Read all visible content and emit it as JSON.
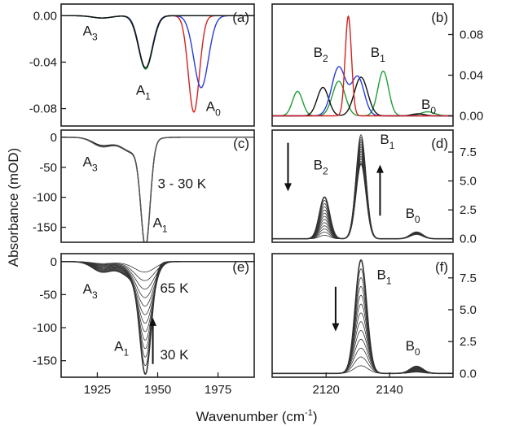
{
  "figure": {
    "ylabel": "Absorbance (mOD)",
    "xlabel": "Wavenumber (cm",
    "xlabel_sup": "-1",
    "xlabel_end": ")"
  },
  "chart_data": [
    {
      "id": "a",
      "panel_label": "(a)",
      "type": "line",
      "xlim": [
        1910,
        1990
      ],
      "ylim": [
        -0.095,
        0.01
      ],
      "yticks": [
        0.0,
        -0.04,
        -0.08
      ],
      "ytick_labels": [
        "0.00",
        "-0.04",
        "-0.08"
      ],
      "xticks": [],
      "xtick_labels": [],
      "y_axis_side": "left",
      "series": [
        {
          "color": "#d42020",
          "peaks": [
            {
              "center": 1945,
              "amp": -0.045,
              "width": 2.8
            },
            {
              "center": 1965,
              "amp": -0.083,
              "width": 2.3
            },
            {
              "center": 1927,
              "amp": -0.002,
              "width": 4
            }
          ]
        },
        {
          "color": "#2a3cd6",
          "peaks": [
            {
              "center": 1945,
              "amp": -0.045,
              "width": 2.8
            },
            {
              "center": 1968,
              "amp": -0.062,
              "width": 3.0
            },
            {
              "center": 1927,
              "amp": -0.002,
              "width": 4
            }
          ]
        },
        {
          "color": "#1e9e35",
          "peaks": [
            {
              "center": 1945,
              "amp": -0.046,
              "width": 2.9
            },
            {
              "center": 1927,
              "amp": -0.002,
              "width": 4
            }
          ]
        },
        {
          "color": "#111111",
          "peaks": [
            {
              "center": 1945,
              "amp": -0.045,
              "width": 2.9
            },
            {
              "center": 1927,
              "amp": -0.002,
              "width": 4
            }
          ]
        }
      ],
      "annotations": [
        {
          "main": "A",
          "sub": "3",
          "x": 1919,
          "y": -0.017
        },
        {
          "main": "A",
          "sub": "1",
          "x": 1941,
          "y": -0.068
        },
        {
          "main": "A",
          "sub": "0",
          "x": 1970,
          "y": -0.082
        }
      ]
    },
    {
      "id": "b",
      "panel_label": "(b)",
      "type": "line",
      "xlim": [
        2103,
        2160
      ],
      "ylim": [
        -0.01,
        0.11
      ],
      "yticks": [
        0.0,
        0.04,
        0.08
      ],
      "ytick_labels": [
        "0.00",
        "0.04",
        "0.08"
      ],
      "xticks": [],
      "xtick_labels": [],
      "y_axis_side": "right",
      "series": [
        {
          "color": "#1e9e35",
          "peaks": [
            {
              "center": 2111,
              "amp": 0.024,
              "width": 1.6
            },
            {
              "center": 2124,
              "amp": 0.034,
              "width": 2.0
            },
            {
              "center": 2138,
              "amp": 0.044,
              "width": 1.7
            },
            {
              "center": 2152,
              "amp": 0.004,
              "width": 2.2
            }
          ]
        },
        {
          "color": "#111111",
          "peaks": [
            {
              "center": 2119,
              "amp": 0.028,
              "width": 1.8
            },
            {
              "center": 2131,
              "amp": 0.038,
              "width": 2.1
            },
            {
              "center": 2149,
              "amp": 0.002,
              "width": 2
            }
          ]
        },
        {
          "color": "#2a3cd6",
          "peaks": [
            {
              "center": 2124,
              "amp": 0.048,
              "width": 2.2
            },
            {
              "center": 2130,
              "amp": 0.038,
              "width": 2.0
            }
          ]
        },
        {
          "color": "#d42020",
          "peaks": [
            {
              "center": 2127,
              "amp": 0.098,
              "width": 1.0
            }
          ]
        }
      ],
      "annotations": [
        {
          "main": "B",
          "sub": "2",
          "x": 2116,
          "y": 0.058
        },
        {
          "main": "B",
          "sub": "1",
          "x": 2134,
          "y": 0.058
        },
        {
          "main": "B",
          "sub": "0",
          "x": 2150,
          "y": 0.007
        }
      ]
    },
    {
      "id": "c",
      "panel_label": "(c)",
      "type": "line",
      "xlim": [
        1910,
        1990
      ],
      "ylim": [
        -175,
        12
      ],
      "yticks": [
        0,
        -50,
        -100,
        -150
      ],
      "ytick_labels": [
        "0",
        "-50",
        "-100",
        "-150"
      ],
      "xticks": [],
      "xtick_labels": [],
      "y_axis_side": "left",
      "series": [
        {
          "color": "#111111",
          "peaks": [
            {
              "center": 1945,
              "amp": -168,
              "width": 1.9
            },
            {
              "center": 1940,
              "amp": -25,
              "width": 5
            },
            {
              "center": 1927,
              "amp": -13,
              "width": 4
            }
          ]
        },
        {
          "color": "#555555",
          "peaks": [
            {
              "center": 1945,
              "amp": -166,
              "width": 1.9
            },
            {
              "center": 1940,
              "amp": -26,
              "width": 5
            },
            {
              "center": 1927,
              "amp": -15,
              "width": 4
            }
          ]
        }
      ],
      "annotations": [
        {
          "main": "A",
          "sub": "3",
          "x": 1919,
          "y": -48
        },
        {
          "main": "A",
          "sub": "1",
          "x": 1948,
          "y": -150
        }
      ],
      "text_notes": [
        {
          "text": "3 - 30 K",
          "x": 1950,
          "y": -85
        }
      ]
    },
    {
      "id": "d",
      "panel_label": "(d)",
      "type": "line",
      "xlim": [
        2103,
        2160
      ],
      "ylim": [
        -0.3,
        9.4
      ],
      "yticks": [
        0.0,
        2.5,
        5.0,
        7.5
      ],
      "ytick_labels": [
        "0.0",
        "2.5",
        "5.0",
        "7.5"
      ],
      "xticks": [],
      "xtick_labels": [],
      "y_axis_side": "right",
      "series_family": {
        "count": 13,
        "color": "#333333",
        "first": [
          {
            "center": 2119.5,
            "amp": 3.6,
            "width": 1.6
          },
          {
            "center": 2131,
            "amp": 6.5,
            "width": 1.6
          },
          {
            "center": 2148.5,
            "amp": 0.4,
            "width": 2.0
          }
        ],
        "last": [
          {
            "center": 2119.5,
            "amp": 0.3,
            "width": 1.6
          },
          {
            "center": 2131,
            "amp": 9.0,
            "width": 1.6
          },
          {
            "center": 2148.5,
            "amp": 0.6,
            "width": 2.0
          }
        ]
      },
      "annotations": [
        {
          "main": "B",
          "sub": "2",
          "x": 2116,
          "y": 6.0
        },
        {
          "main": "B",
          "sub": "1",
          "x": 2137,
          "y": 8.2
        },
        {
          "main": "B",
          "sub": "0",
          "x": 2145,
          "y": 1.8
        }
      ],
      "arrows": [
        {
          "x": 2108,
          "y1": 8.3,
          "y2": 4.1
        },
        {
          "x": 2137,
          "y1": 2.0,
          "y2": 6.4
        }
      ]
    },
    {
      "id": "e",
      "panel_label": "(e)",
      "type": "line",
      "xlim": [
        1910,
        1990
      ],
      "ylim": [
        -175,
        12
      ],
      "yticks": [
        0,
        -50,
        -100,
        -150
      ],
      "ytick_labels": [
        "0",
        "-50",
        "-100",
        "-150"
      ],
      "xticks": [
        1925,
        1950,
        1975
      ],
      "xtick_labels": [
        "1925",
        "1950",
        "1975"
      ],
      "y_axis_side": "left",
      "series_family": {
        "count": 13,
        "color": "#333333",
        "first": [
          {
            "center": 1945,
            "amp": -155,
            "width": 2.3
          },
          {
            "center": 1940,
            "amp": -25,
            "width": 5
          },
          {
            "center": 1927,
            "amp": -15,
            "width": 4
          }
        ],
        "last": [
          {
            "center": 1945,
            "amp": -14,
            "width": 4.0
          },
          {
            "center": 1940,
            "amp": -3,
            "width": 5
          },
          {
            "center": 1927,
            "amp": -3,
            "width": 4
          }
        ]
      },
      "annotations": [
        {
          "main": "A",
          "sub": "3",
          "x": 1919,
          "y": -48
        },
        {
          "main": "A",
          "sub": "1",
          "x": 1932,
          "y": -135
        }
      ],
      "text_notes": [
        {
          "text": "65 K",
          "x": 1951,
          "y": -47
        },
        {
          "text": "30 K",
          "x": 1951,
          "y": -148
        }
      ],
      "arrows": [
        {
          "x": 1948,
          "y1": -155,
          "y2": -85
        }
      ]
    },
    {
      "id": "f",
      "panel_label": "(f)",
      "type": "line",
      "xlim": [
        2103,
        2160
      ],
      "ylim": [
        -0.3,
        9.4
      ],
      "yticks": [
        0.0,
        2.5,
        5.0,
        7.5
      ],
      "ytick_labels": [
        "0.0",
        "2.5",
        "5.0",
        "7.5"
      ],
      "xticks": [
        2120,
        2140
      ],
      "xtick_labels": [
        "2120",
        "2140"
      ],
      "y_axis_side": "right",
      "series_family": {
        "count": 13,
        "color": "#333333",
        "first": [
          {
            "center": 2131,
            "amp": 8.9,
            "width": 1.8
          },
          {
            "center": 2148.5,
            "amp": 0.55,
            "width": 2.0
          }
        ],
        "last": [
          {
            "center": 2131,
            "amp": 0.6,
            "width": 2.2
          },
          {
            "center": 2148.5,
            "amp": 0.1,
            "width": 2.0
          }
        ]
      },
      "annotations": [
        {
          "main": "B",
          "sub": "1",
          "x": 2136,
          "y": 7.4
        },
        {
          "main": "B",
          "sub": "0",
          "x": 2145,
          "y": 1.8
        }
      ],
      "arrows": [
        {
          "x": 2123,
          "y1": 6.8,
          "y2": 3.3
        }
      ]
    }
  ]
}
